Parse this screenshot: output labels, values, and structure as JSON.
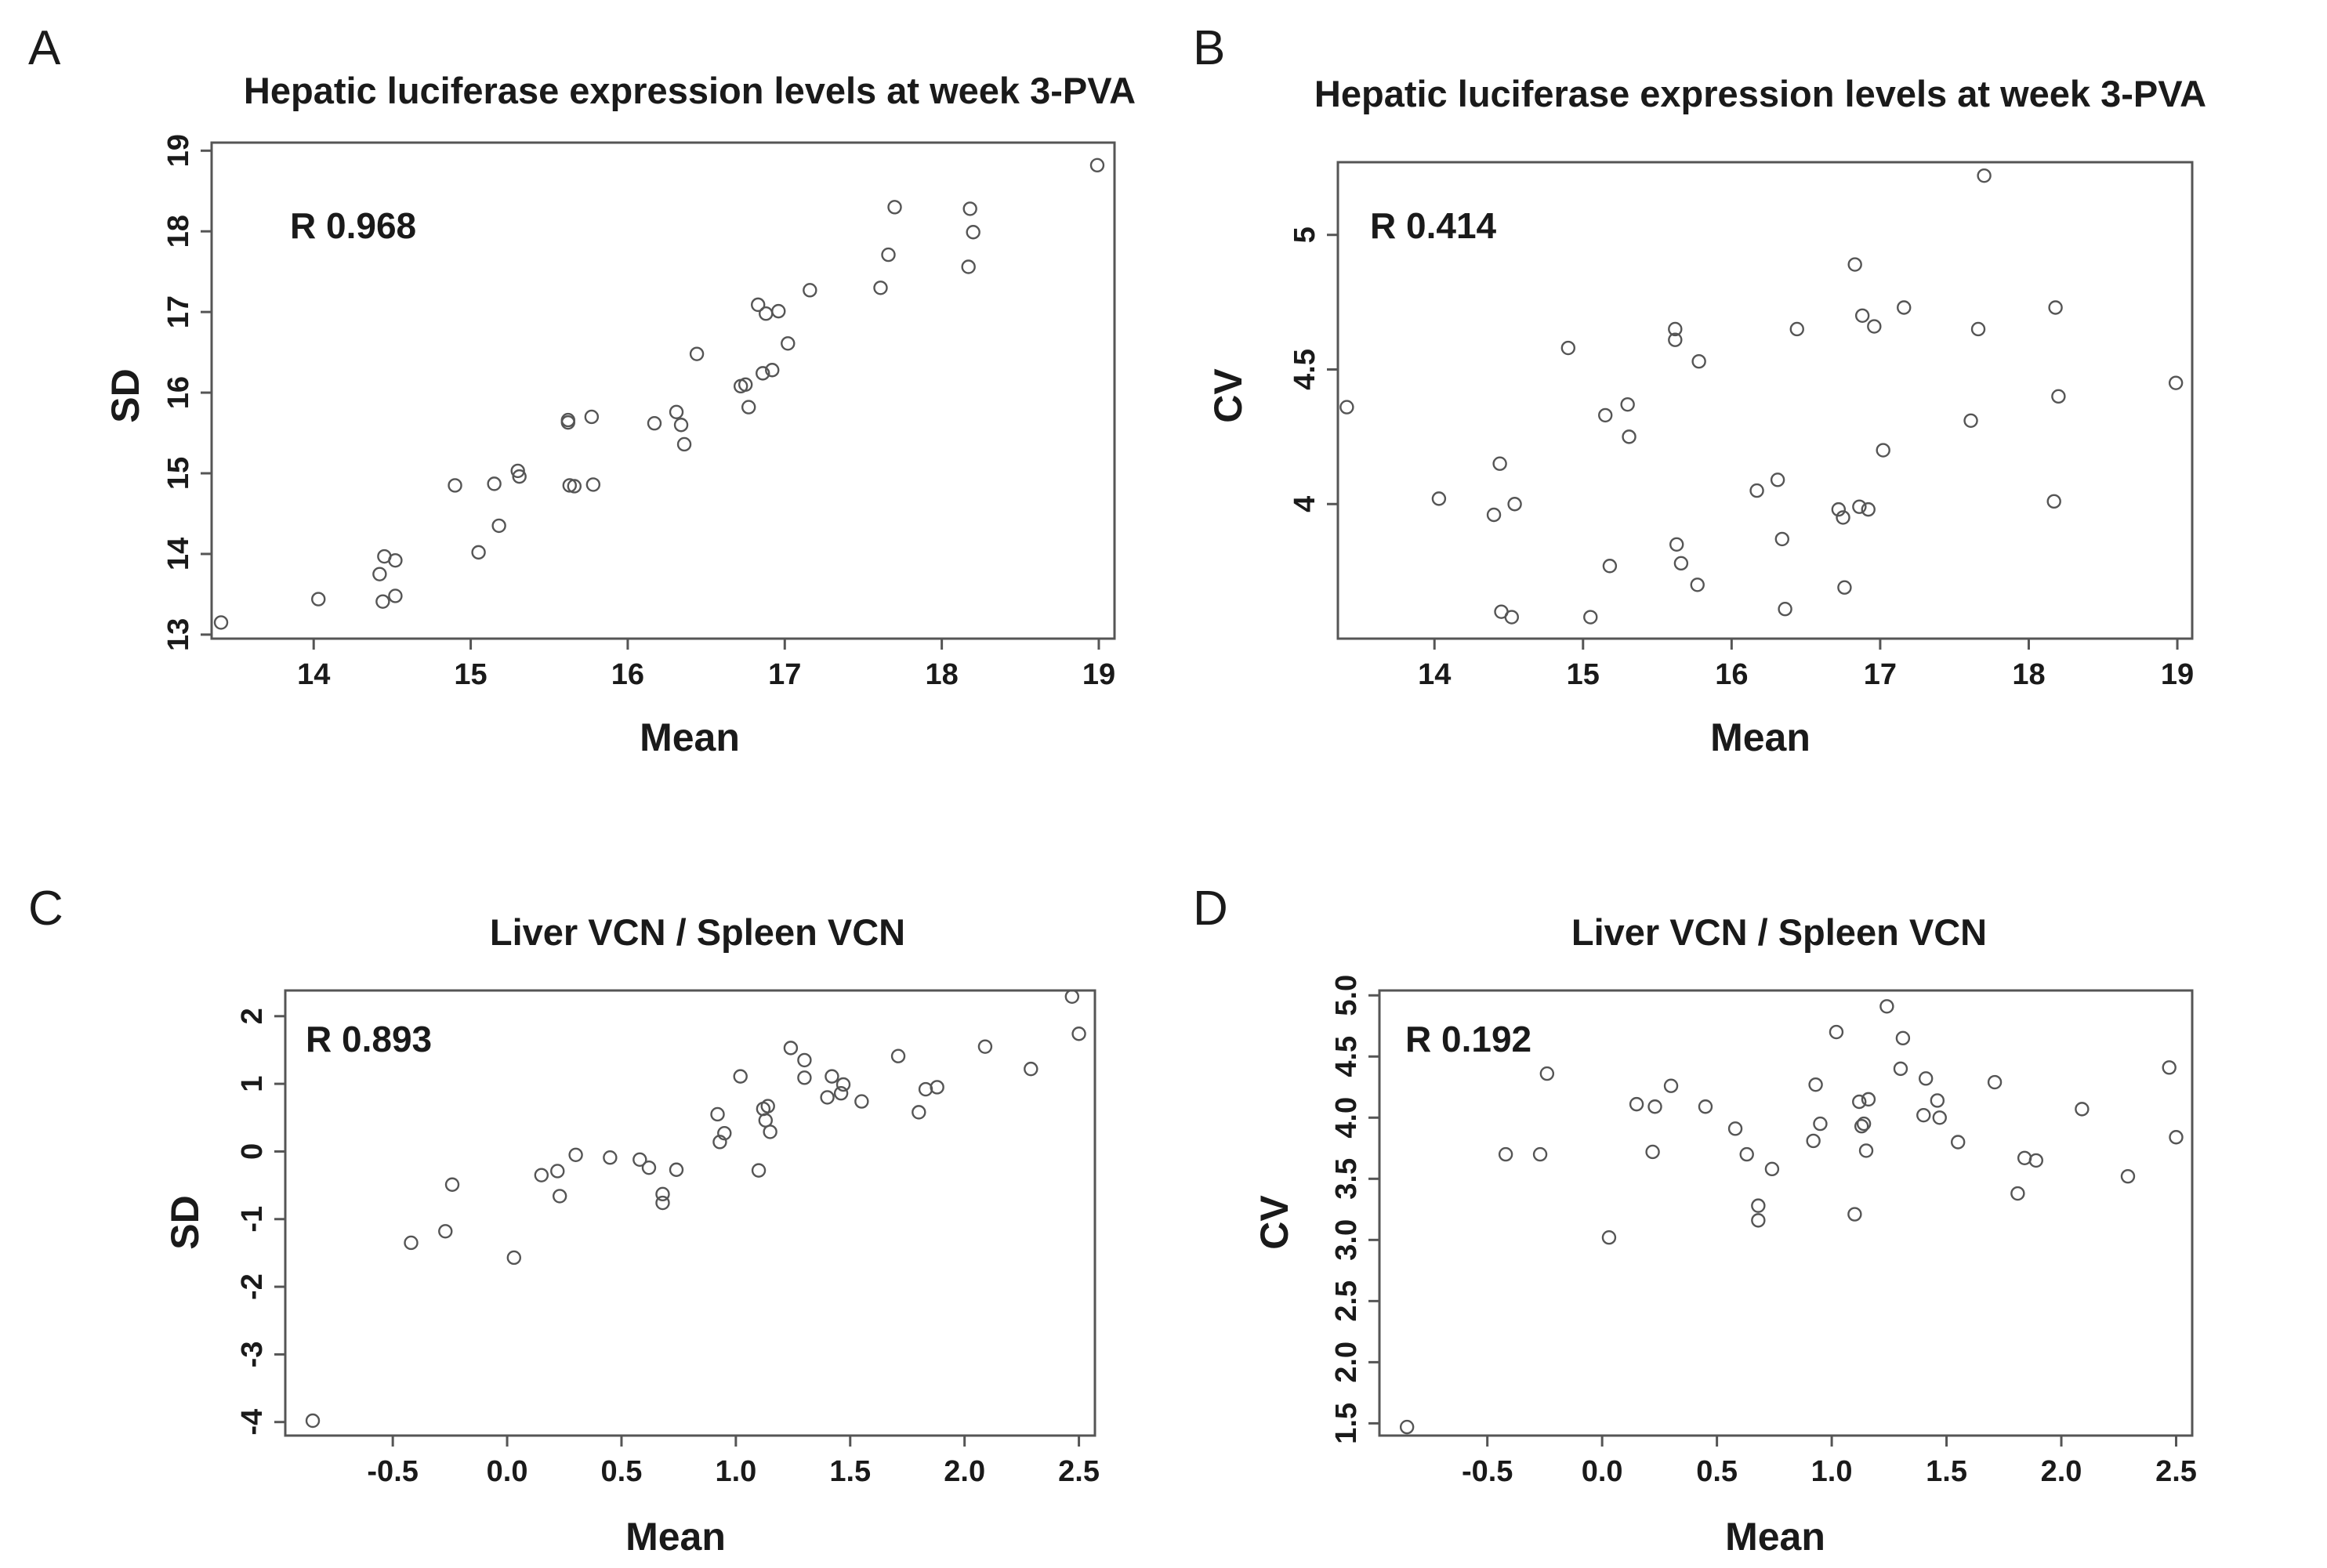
{
  "chart_data": [
    {
      "panel": "A",
      "type": "scatter",
      "title": "Hepatic luciferase expression levels at week 3-PVA",
      "xlabel": "Mean",
      "ylabel": "SD",
      "annotation": "R 0.968",
      "xlim": [
        13.35,
        19.1
      ],
      "ylim": [
        12.95,
        19.1
      ],
      "xticks": [
        14,
        15,
        16,
        17,
        18,
        19
      ],
      "yticks": [
        13,
        14,
        15,
        16,
        17,
        18,
        19
      ],
      "x": [
        13.41,
        14.03,
        14.42,
        14.45,
        14.44,
        14.52,
        14.52,
        14.9,
        15.05,
        15.15,
        15.18,
        15.3,
        15.31,
        15.62,
        15.62,
        15.63,
        15.66,
        15.77,
        15.78,
        16.17,
        16.31,
        16.34,
        16.36,
        16.44,
        16.72,
        16.75,
        16.77,
        16.83,
        16.86,
        16.88,
        16.92,
        16.96,
        17.02,
        17.16,
        17.61,
        17.66,
        17.7,
        18.17,
        18.18,
        18.2,
        18.99
      ],
      "y": [
        13.15,
        13.44,
        13.75,
        13.97,
        13.41,
        13.92,
        13.48,
        14.85,
        14.02,
        14.87,
        14.35,
        15.03,
        14.96,
        15.63,
        15.66,
        14.85,
        14.84,
        15.7,
        14.86,
        15.62,
        15.76,
        15.6,
        15.36,
        16.48,
        16.08,
        16.1,
        15.82,
        17.09,
        16.24,
        16.98,
        16.28,
        17.01,
        16.61,
        17.27,
        17.3,
        17.71,
        18.3,
        17.56,
        18.28,
        17.99,
        18.82
      ]
    },
    {
      "panel": "B",
      "type": "scatter",
      "title": "Hepatic luciferase expression levels at week 3-PVA",
      "xlabel": "Mean",
      "ylabel": "CV",
      "annotation": "R 0.414",
      "xlim": [
        13.35,
        19.1
      ],
      "ylim": [
        3.5,
        5.27
      ],
      "xticks": [
        14,
        15,
        16,
        17,
        18,
        19
      ],
      "yticks": [
        4.0,
        4.5,
        5.0
      ],
      "x": [
        13.41,
        14.03,
        14.4,
        14.44,
        14.45,
        14.52,
        14.54,
        14.9,
        15.05,
        15.15,
        15.18,
        15.3,
        15.31,
        15.62,
        15.62,
        15.63,
        15.66,
        15.77,
        15.78,
        16.17,
        16.31,
        16.34,
        16.36,
        16.44,
        16.72,
        16.75,
        16.76,
        16.83,
        16.86,
        16.88,
        16.92,
        16.96,
        17.02,
        17.16,
        17.61,
        17.66,
        17.7,
        18.17,
        18.18,
        18.2,
        18.99
      ],
      "y": [
        4.36,
        4.02,
        3.96,
        4.15,
        3.6,
        3.58,
        4.0,
        4.58,
        3.58,
        4.33,
        3.77,
        4.37,
        4.25,
        4.65,
        4.61,
        3.85,
        3.78,
        3.7,
        4.53,
        4.05,
        4.09,
        3.87,
        3.61,
        4.65,
        3.98,
        3.95,
        3.69,
        4.89,
        3.99,
        4.7,
        3.98,
        4.66,
        4.2,
        4.73,
        4.31,
        4.65,
        5.22,
        4.01,
        4.73,
        4.4,
        4.45
      ]
    },
    {
      "panel": "C",
      "type": "scatter",
      "title": "Liver VCN / Spleen VCN",
      "xlabel": "Mean",
      "ylabel": "SD",
      "annotation": "R 0.893",
      "xlim": [
        -0.97,
        2.57
      ],
      "ylim": [
        -4.2,
        2.38
      ],
      "xticks": [
        "-0.5",
        "0.0",
        "0.5",
        "1.0",
        "1.5",
        "2.0",
        "2.5"
      ],
      "yticks": [
        -4,
        -3,
        -2,
        -1,
        0,
        1,
        2
      ],
      "x": [
        -0.85,
        -0.42,
        -0.27,
        -0.24,
        0.03,
        0.15,
        0.22,
        0.23,
        0.3,
        0.45,
        0.58,
        0.62,
        0.68,
        0.68,
        0.74,
        0.92,
        0.93,
        0.95,
        1.02,
        1.1,
        1.12,
        1.13,
        1.14,
        1.15,
        1.24,
        1.3,
        1.3,
        1.4,
        1.42,
        1.46,
        1.47,
        1.55,
        1.71,
        1.8,
        1.83,
        1.88,
        2.09,
        2.29,
        2.47,
        2.5
      ],
      "y": [
        -3.98,
        -1.35,
        -1.18,
        -0.49,
        -1.57,
        -0.35,
        -0.29,
        -0.66,
        -0.05,
        -0.09,
        -0.12,
        -0.24,
        -0.63,
        -0.76,
        -0.27,
        0.55,
        0.14,
        0.27,
        1.11,
        -0.28,
        0.63,
        0.46,
        0.67,
        0.29,
        1.53,
        1.35,
        1.09,
        0.8,
        1.11,
        0.86,
        0.99,
        0.74,
        1.41,
        0.58,
        0.92,
        0.95,
        1.55,
        1.22,
        2.29,
        1.74
      ]
    },
    {
      "panel": "D",
      "type": "scatter",
      "title": "Liver VCN / Spleen VCN",
      "xlabel": "Mean",
      "ylabel": "CV",
      "annotation": "R 0.192",
      "xlim": [
        -0.97,
        2.57
      ],
      "ylim": [
        1.4,
        5.04
      ],
      "xticks": [
        "-0.5",
        "0.0",
        "0.5",
        "1.0",
        "1.5",
        "2.0",
        "2.5"
      ],
      "yticks": [
        "1.5",
        "2.0",
        "2.5",
        "3.0",
        "3.5",
        "4.0",
        "4.5",
        "5.0"
      ],
      "x": [
        -0.85,
        -0.42,
        -0.27,
        -0.24,
        0.03,
        0.15,
        0.22,
        0.23,
        0.3,
        0.45,
        0.58,
        0.63,
        0.68,
        0.68,
        0.74,
        0.92,
        0.93,
        0.95,
        1.02,
        1.1,
        1.12,
        1.13,
        1.14,
        1.15,
        1.16,
        1.24,
        1.3,
        1.31,
        1.4,
        1.41,
        1.46,
        1.47,
        1.55,
        1.71,
        1.81,
        1.84,
        1.89,
        2.09,
        2.29,
        2.47,
        2.5
      ],
      "y": [
        1.47,
        3.7,
        3.7,
        4.36,
        3.02,
        4.11,
        3.72,
        4.09,
        4.26,
        4.09,
        3.91,
        3.7,
        3.28,
        3.16,
        3.58,
        3.81,
        4.27,
        3.95,
        4.7,
        3.21,
        4.13,
        3.93,
        3.95,
        3.73,
        4.15,
        4.91,
        4.4,
        4.65,
        4.02,
        4.32,
        4.14,
        4.0,
        3.8,
        4.29,
        3.38,
        3.67,
        3.65,
        4.07,
        3.52,
        4.41,
        3.84
      ]
    }
  ]
}
